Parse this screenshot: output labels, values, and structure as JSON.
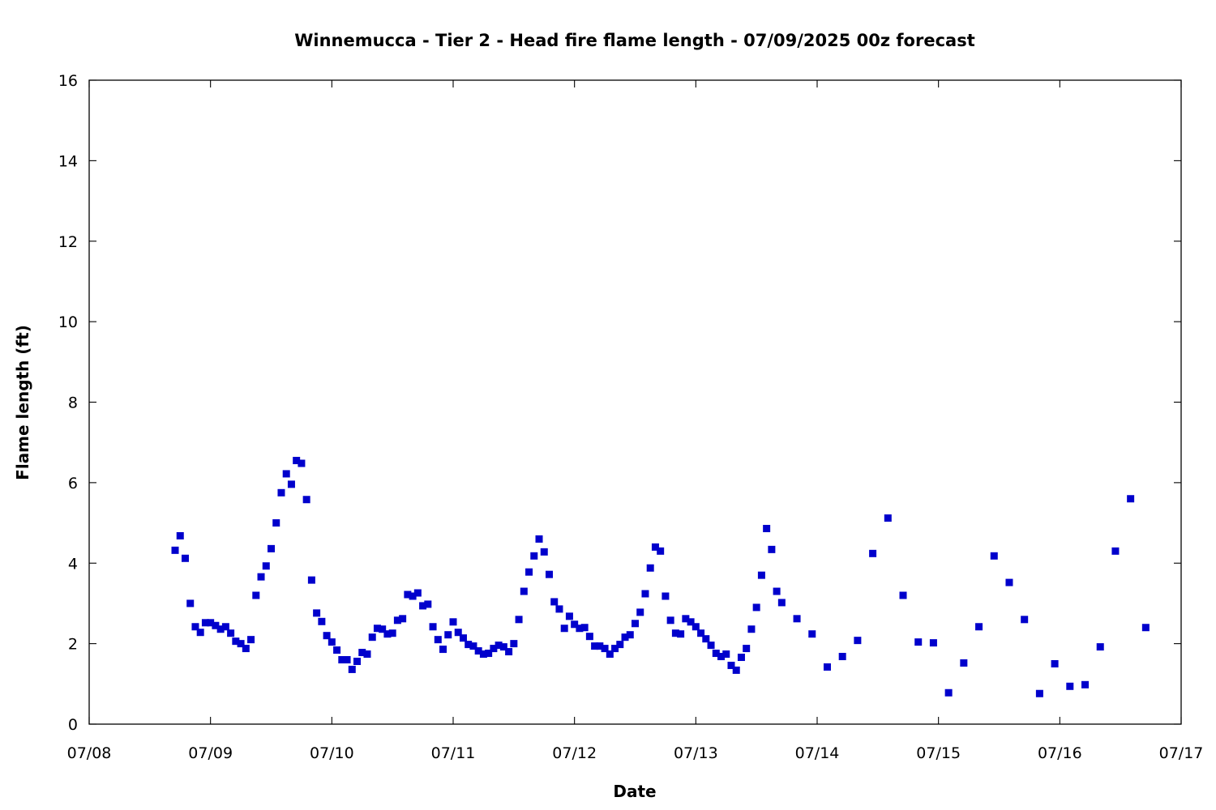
{
  "chart_data": {
    "type": "scatter",
    "title": "Winnemucca - Tier 2 - Head fire flame length - 07/09/2025 00z forecast",
    "xlabel": "Date",
    "ylabel": "Flame length (ft)",
    "x_tick_labels": [
      "07/08",
      "07/09",
      "07/10",
      "07/11",
      "07/12",
      "07/13",
      "07/14",
      "07/15",
      "07/16",
      "07/17"
    ],
    "y_ticks": [
      0,
      2,
      4,
      6,
      8,
      10,
      12,
      14,
      16
    ],
    "xlim": [
      "07/08 00:00",
      "07/17 00:00"
    ],
    "ylim": [
      0,
      16
    ],
    "grid": false,
    "legend": "none",
    "point_color": "#0000cc",
    "series": [
      {
        "values": [
          [
            "07/08 17:00",
            4.32
          ],
          [
            "07/08 18:00",
            4.68
          ],
          [
            "07/08 19:00",
            4.12
          ],
          [
            "07/08 20:00",
            3.0
          ],
          [
            "07/08 21:00",
            2.42
          ],
          [
            "07/08 22:00",
            2.28
          ],
          [
            "07/08 23:00",
            2.52
          ],
          [
            "07/09 00:00",
            2.52
          ],
          [
            "07/09 01:00",
            2.45
          ],
          [
            "07/09 02:00",
            2.36
          ],
          [
            "07/09 03:00",
            2.42
          ],
          [
            "07/09 04:00",
            2.26
          ],
          [
            "07/09 05:00",
            2.06
          ],
          [
            "07/09 06:00",
            2.0
          ],
          [
            "07/09 07:00",
            1.88
          ],
          [
            "07/09 08:00",
            2.1
          ],
          [
            "07/09 09:00",
            3.2
          ],
          [
            "07/09 10:00",
            3.66
          ],
          [
            "07/09 11:00",
            3.93
          ],
          [
            "07/09 12:00",
            4.36
          ],
          [
            "07/09 13:00",
            5.0
          ],
          [
            "07/09 14:00",
            5.75
          ],
          [
            "07/09 15:00",
            6.22
          ],
          [
            "07/09 16:00",
            5.96
          ],
          [
            "07/09 17:00",
            6.55
          ],
          [
            "07/09 18:00",
            6.48
          ],
          [
            "07/09 19:00",
            5.58
          ],
          [
            "07/09 20:00",
            3.58
          ],
          [
            "07/09 21:00",
            2.76
          ],
          [
            "07/09 22:00",
            2.55
          ],
          [
            "07/09 23:00",
            2.2
          ],
          [
            "07/10 00:00",
            2.04
          ],
          [
            "07/10 01:00",
            1.84
          ],
          [
            "07/10 02:00",
            1.6
          ],
          [
            "07/10 03:00",
            1.6
          ],
          [
            "07/10 04:00",
            1.36
          ],
          [
            "07/10 05:00",
            1.56
          ],
          [
            "07/10 06:00",
            1.78
          ],
          [
            "07/10 07:00",
            1.74
          ],
          [
            "07/10 08:00",
            2.16
          ],
          [
            "07/10 09:00",
            2.38
          ],
          [
            "07/10 10:00",
            2.36
          ],
          [
            "07/10 11:00",
            2.24
          ],
          [
            "07/10 12:00",
            2.26
          ],
          [
            "07/10 13:00",
            2.58
          ],
          [
            "07/10 14:00",
            2.62
          ],
          [
            "07/10 15:00",
            3.22
          ],
          [
            "07/10 16:00",
            3.18
          ],
          [
            "07/10 17:00",
            3.26
          ],
          [
            "07/10 18:00",
            2.94
          ],
          [
            "07/10 19:00",
            2.98
          ],
          [
            "07/10 20:00",
            2.42
          ],
          [
            "07/10 21:00",
            2.1
          ],
          [
            "07/10 22:00",
            1.86
          ],
          [
            "07/10 23:00",
            2.22
          ],
          [
            "07/11 00:00",
            2.54
          ],
          [
            "07/11 01:00",
            2.28
          ],
          [
            "07/11 02:00",
            2.14
          ],
          [
            "07/11 03:00",
            1.98
          ],
          [
            "07/11 04:00",
            1.94
          ],
          [
            "07/11 05:00",
            1.82
          ],
          [
            "07/11 06:00",
            1.74
          ],
          [
            "07/11 07:00",
            1.76
          ],
          [
            "07/11 08:00",
            1.88
          ],
          [
            "07/11 09:00",
            1.96
          ],
          [
            "07/11 10:00",
            1.92
          ],
          [
            "07/11 11:00",
            1.8
          ],
          [
            "07/11 12:00",
            2.0
          ],
          [
            "07/11 13:00",
            2.6
          ],
          [
            "07/11 14:00",
            3.3
          ],
          [
            "07/11 15:00",
            3.78
          ],
          [
            "07/11 16:00",
            4.18
          ],
          [
            "07/11 17:00",
            4.6
          ],
          [
            "07/11 18:00",
            4.28
          ],
          [
            "07/11 19:00",
            3.72
          ],
          [
            "07/11 20:00",
            3.04
          ],
          [
            "07/11 21:00",
            2.86
          ],
          [
            "07/11 22:00",
            2.38
          ],
          [
            "07/11 23:00",
            2.68
          ],
          [
            "07/12 00:00",
            2.48
          ],
          [
            "07/12 01:00",
            2.38
          ],
          [
            "07/12 02:00",
            2.4
          ],
          [
            "07/12 03:00",
            2.18
          ],
          [
            "07/12 04:00",
            1.94
          ],
          [
            "07/12 05:00",
            1.94
          ],
          [
            "07/12 06:00",
            1.88
          ],
          [
            "07/12 07:00",
            1.74
          ],
          [
            "07/12 08:00",
            1.88
          ],
          [
            "07/12 09:00",
            1.98
          ],
          [
            "07/12 10:00",
            2.16
          ],
          [
            "07/12 11:00",
            2.22
          ],
          [
            "07/12 12:00",
            2.5
          ],
          [
            "07/12 13:00",
            2.78
          ],
          [
            "07/12 14:00",
            3.24
          ],
          [
            "07/12 15:00",
            3.88
          ],
          [
            "07/12 16:00",
            4.4
          ],
          [
            "07/12 17:00",
            4.3
          ],
          [
            "07/12 18:00",
            3.18
          ],
          [
            "07/12 19:00",
            2.58
          ],
          [
            "07/12 20:00",
            2.26
          ],
          [
            "07/12 21:00",
            2.24
          ],
          [
            "07/12 22:00",
            2.62
          ],
          [
            "07/12 23:00",
            2.54
          ],
          [
            "07/13 00:00",
            2.42
          ],
          [
            "07/13 01:00",
            2.26
          ],
          [
            "07/13 02:00",
            2.12
          ],
          [
            "07/13 03:00",
            1.96
          ],
          [
            "07/13 04:00",
            1.76
          ],
          [
            "07/13 05:00",
            1.68
          ],
          [
            "07/13 06:00",
            1.74
          ],
          [
            "07/13 07:00",
            1.46
          ],
          [
            "07/13 08:00",
            1.34
          ],
          [
            "07/13 09:00",
            1.66
          ],
          [
            "07/13 10:00",
            1.88
          ],
          [
            "07/13 11:00",
            2.36
          ],
          [
            "07/13 12:00",
            2.9
          ],
          [
            "07/13 13:00",
            3.7
          ],
          [
            "07/13 14:00",
            4.86
          ],
          [
            "07/13 15:00",
            4.34
          ],
          [
            "07/13 16:00",
            3.3
          ],
          [
            "07/13 17:00",
            3.02
          ],
          [
            "07/13 20:00",
            2.62
          ],
          [
            "07/13 23:00",
            2.24
          ],
          [
            "07/14 02:00",
            1.42
          ],
          [
            "07/14 05:00",
            1.68
          ],
          [
            "07/14 08:00",
            2.08
          ],
          [
            "07/14 11:00",
            4.24
          ],
          [
            "07/14 14:00",
            5.12
          ],
          [
            "07/14 17:00",
            3.2
          ],
          [
            "07/14 20:00",
            2.04
          ],
          [
            "07/14 23:00",
            2.02
          ],
          [
            "07/15 02:00",
            0.78
          ],
          [
            "07/15 05:00",
            1.52
          ],
          [
            "07/15 08:00",
            2.42
          ],
          [
            "07/15 11:00",
            4.18
          ],
          [
            "07/15 14:00",
            3.52
          ],
          [
            "07/15 17:00",
            2.6
          ],
          [
            "07/15 20:00",
            0.76
          ],
          [
            "07/15 23:00",
            1.5
          ],
          [
            "07/16 02:00",
            0.94
          ],
          [
            "07/16 05:00",
            0.98
          ],
          [
            "07/16 08:00",
            1.92
          ],
          [
            "07/16 11:00",
            4.3
          ],
          [
            "07/16 14:00",
            5.6
          ],
          [
            "07/16 17:00",
            2.4
          ]
        ]
      }
    ]
  }
}
